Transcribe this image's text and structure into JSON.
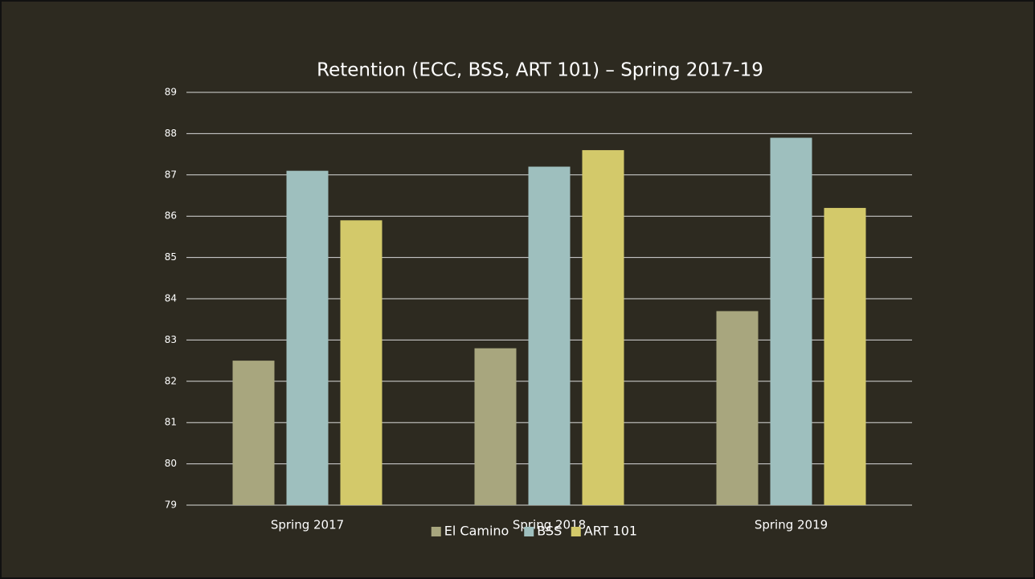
{
  "chart_data": {
    "type": "bar",
    "title": "Retention (ECC, BSS, ART 101) – Spring 2017-19",
    "categories": [
      "Spring 2017",
      "Spring 2018",
      "Spring 2019"
    ],
    "series": [
      {
        "name": "El Camino",
        "color": "#a8a67e",
        "values": [
          82.5,
          82.8,
          83.7
        ]
      },
      {
        "name": "BSS",
        "color": "#9ebfbe",
        "values": [
          87.1,
          87.2,
          87.9
        ]
      },
      {
        "name": "ART 101",
        "color": "#d3c96a",
        "values": [
          85.9,
          87.6,
          86.2
        ]
      }
    ],
    "ylim": [
      79,
      89
    ],
    "yticks": [
      79,
      80,
      81,
      82,
      83,
      84,
      85,
      86,
      87,
      88,
      89
    ],
    "grid": true,
    "legend": "bottom"
  }
}
